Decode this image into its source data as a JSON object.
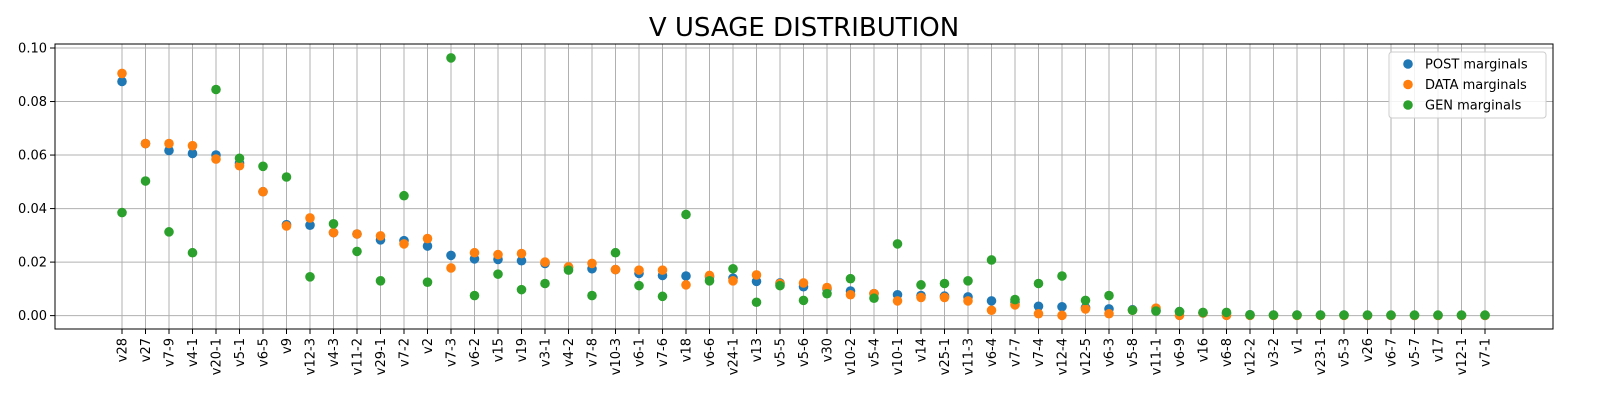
{
  "chart_data": {
    "type": "scatter",
    "title": "V USAGE DISTRIBUTION",
    "xlabel": "",
    "ylabel": "",
    "ylim": [
      -0.005,
      0.1015
    ],
    "yticks": [
      0.0,
      0.02,
      0.04,
      0.06,
      0.08,
      0.1
    ],
    "ytick_labels": [
      "0.00",
      "0.02",
      "0.04",
      "0.06",
      "0.08",
      "0.10"
    ],
    "grid": true,
    "legend_position": "top-right",
    "categories": [
      "v28",
      "v27",
      "v7-9",
      "v4-1",
      "v20-1",
      "v5-1",
      "v6-5",
      "v9",
      "v12-3",
      "v4-3",
      "v11-2",
      "v29-1",
      "v7-2",
      "v2",
      "v7-3",
      "v6-2",
      "v15",
      "v19",
      "v3-1",
      "v4-2",
      "v7-8",
      "v10-3",
      "v6-1",
      "v7-6",
      "v18",
      "v6-6",
      "v24-1",
      "v13",
      "v5-5",
      "v5-6",
      "v30",
      "v10-2",
      "v5-4",
      "v10-1",
      "v14",
      "v25-1",
      "v11-3",
      "v6-4",
      "v7-7",
      "v7-4",
      "v12-4",
      "v12-5",
      "v6-3",
      "v5-8",
      "v11-1",
      "v6-9",
      "v16",
      "v6-8",
      "v12-2",
      "v3-2",
      "v1",
      "v23-1",
      "v5-3",
      "v26",
      "v6-7",
      "v5-7",
      "v17",
      "v12-1",
      "v7-1"
    ],
    "series": [
      {
        "name": "POST marginals",
        "color": "#1f77b4",
        "values": [
          0.0875,
          0.0643,
          0.0617,
          0.0606,
          0.06,
          0.057,
          0.0463,
          0.034,
          0.0338,
          0.031,
          0.0305,
          0.0283,
          0.028,
          0.026,
          0.0225,
          0.0212,
          0.021,
          0.0205,
          0.0195,
          0.018,
          0.0175,
          0.0172,
          0.0158,
          0.015,
          0.0148,
          0.0145,
          0.014,
          0.0128,
          0.0122,
          0.0108,
          0.01,
          0.0092,
          0.0082,
          0.0078,
          0.0075,
          0.0073,
          0.007,
          0.0055,
          0.005,
          0.0035,
          0.0033,
          0.003,
          0.0025,
          0.0022,
          0.002,
          0.0015,
          0.001,
          0.0008,
          0.0003,
          0.0002,
          0.0002,
          0.0002,
          0.0002,
          0.0001,
          0.0001,
          0.0001,
          0.0001,
          0.0001,
          0.0001
        ]
      },
      {
        "name": "DATA marginals",
        "color": "#ff7f0e",
        "values": [
          0.0905,
          0.0643,
          0.0643,
          0.0635,
          0.0585,
          0.056,
          0.0463,
          0.0335,
          0.0365,
          0.031,
          0.0305,
          0.0298,
          0.0268,
          0.0288,
          0.0178,
          0.0235,
          0.0228,
          0.0232,
          0.02,
          0.0182,
          0.0195,
          0.0172,
          0.017,
          0.017,
          0.0115,
          0.015,
          0.013,
          0.0152,
          0.012,
          0.0122,
          0.0105,
          0.0078,
          0.0082,
          0.0055,
          0.0068,
          0.0068,
          0.0055,
          0.002,
          0.004,
          0.0007,
          0.0001,
          0.0025,
          0.0007,
          0.002,
          0.0028,
          0.0001,
          0.001,
          0.0001,
          0.0001,
          0.0001,
          0.0001,
          0.0001,
          0.0001,
          0.0001,
          0.0001,
          0.0001,
          0.0001,
          0.0001,
          0.0001
        ]
      },
      {
        "name": "GEN marginals",
        "color": "#2ca02c",
        "values": [
          0.0385,
          0.0503,
          0.0313,
          0.0235,
          0.0845,
          0.0588,
          0.0558,
          0.0518,
          0.0145,
          0.0343,
          0.024,
          0.013,
          0.0448,
          0.0125,
          0.0963,
          0.0075,
          0.0155,
          0.0097,
          0.012,
          0.017,
          0.0075,
          0.0235,
          0.0112,
          0.0072,
          0.0378,
          0.013,
          0.0175,
          0.005,
          0.0112,
          0.0057,
          0.0082,
          0.0138,
          0.0065,
          0.0268,
          0.0115,
          0.012,
          0.013,
          0.0208,
          0.006,
          0.012,
          0.0148,
          0.0057,
          0.0075,
          0.002,
          0.0017,
          0.0015,
          0.0012,
          0.0012,
          0.0003,
          0.0002,
          0.0002,
          0.0002,
          0.0002,
          0.0002,
          0.0002,
          0.0002,
          0.0002,
          0.0002,
          0.0002
        ]
      }
    ]
  }
}
